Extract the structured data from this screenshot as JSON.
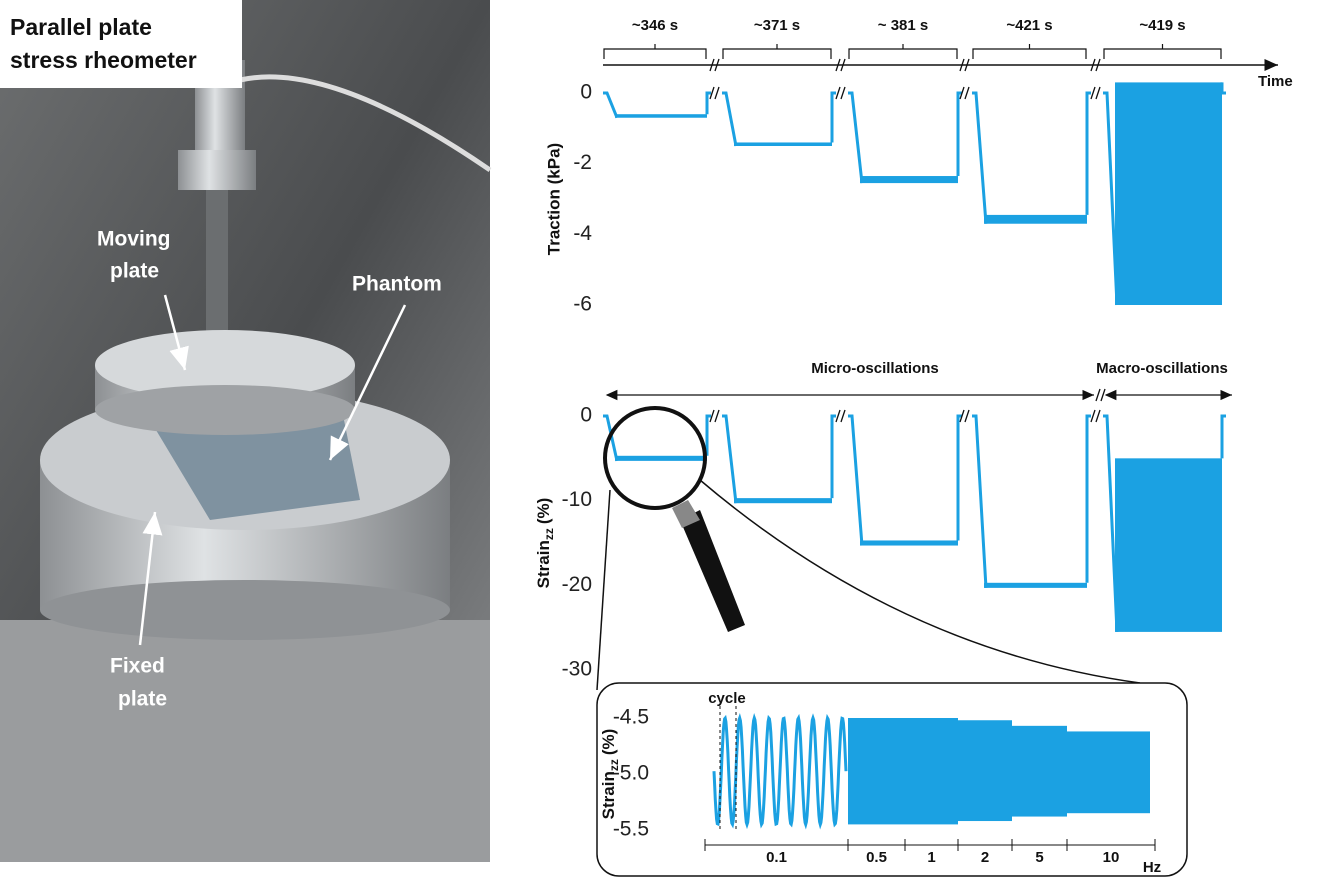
{
  "photo": {
    "title": [
      "Parallel plate",
      "stress rheometer"
    ],
    "labels": [
      {
        "lines": [
          "Moving",
          "plate"
        ]
      },
      {
        "lines": [
          "Phantom"
        ]
      },
      {
        "lines": [
          "Fixed",
          "plate"
        ]
      }
    ]
  },
  "chart_data": [
    {
      "type": "step-band",
      "ylabel": "Traction (kPa)",
      "xlabel": "Time",
      "durations": [
        "~346 s",
        "~371 s",
        "~ 381 s",
        "~421 s",
        "~419 s"
      ],
      "ylim": [
        -6,
        0
      ],
      "yticks": [
        0,
        -2,
        -4,
        -6
      ],
      "baseline": 0,
      "color": "#1ba1e2",
      "low": [
        -0.7,
        -1.5,
        -2.55,
        -3.7,
        -6.0
      ],
      "high": [
        -0.6,
        -1.4,
        -2.35,
        -3.45,
        0.3
      ]
    },
    {
      "type": "step-band",
      "ylabel": {
        "text": "Strain",
        "subscript": "zz",
        "unit": "(%)"
      },
      "annotations": [
        "Micro-oscillations",
        "Macro-oscillations"
      ],
      "ylim": [
        -30,
        0
      ],
      "yticks": [
        0,
        -10,
        -20,
        -30
      ],
      "baseline": 0,
      "color": "#1ba1e2",
      "low": [
        -5.3,
        -10.3,
        -15.3,
        -20.3,
        -25.5
      ],
      "high": [
        -4.7,
        -9.7,
        -14.7,
        -19.7,
        -5.0
      ]
    },
    {
      "type": "oscillation",
      "ylabel": {
        "text": "Strain",
        "subscript": "zz",
        "unit": "(%)"
      },
      "annotation": "cycle",
      "unit": "Hz",
      "categories": [
        "0.1",
        "0.5",
        "1",
        "2",
        "5",
        "10"
      ],
      "ylim": [
        -5.5,
        -4.5
      ],
      "yticks": [
        -4.5,
        {
          "value": -5,
          "label": "-5.0"
        },
        -5.5
      ],
      "color": "#1ba1e2",
      "low": [
        -5.45,
        -5.45,
        -5.45,
        -5.42,
        -5.38,
        -5.35
      ],
      "high": [
        -4.5,
        -4.5,
        -4.5,
        -4.52,
        -4.57,
        -4.62
      ]
    }
  ]
}
